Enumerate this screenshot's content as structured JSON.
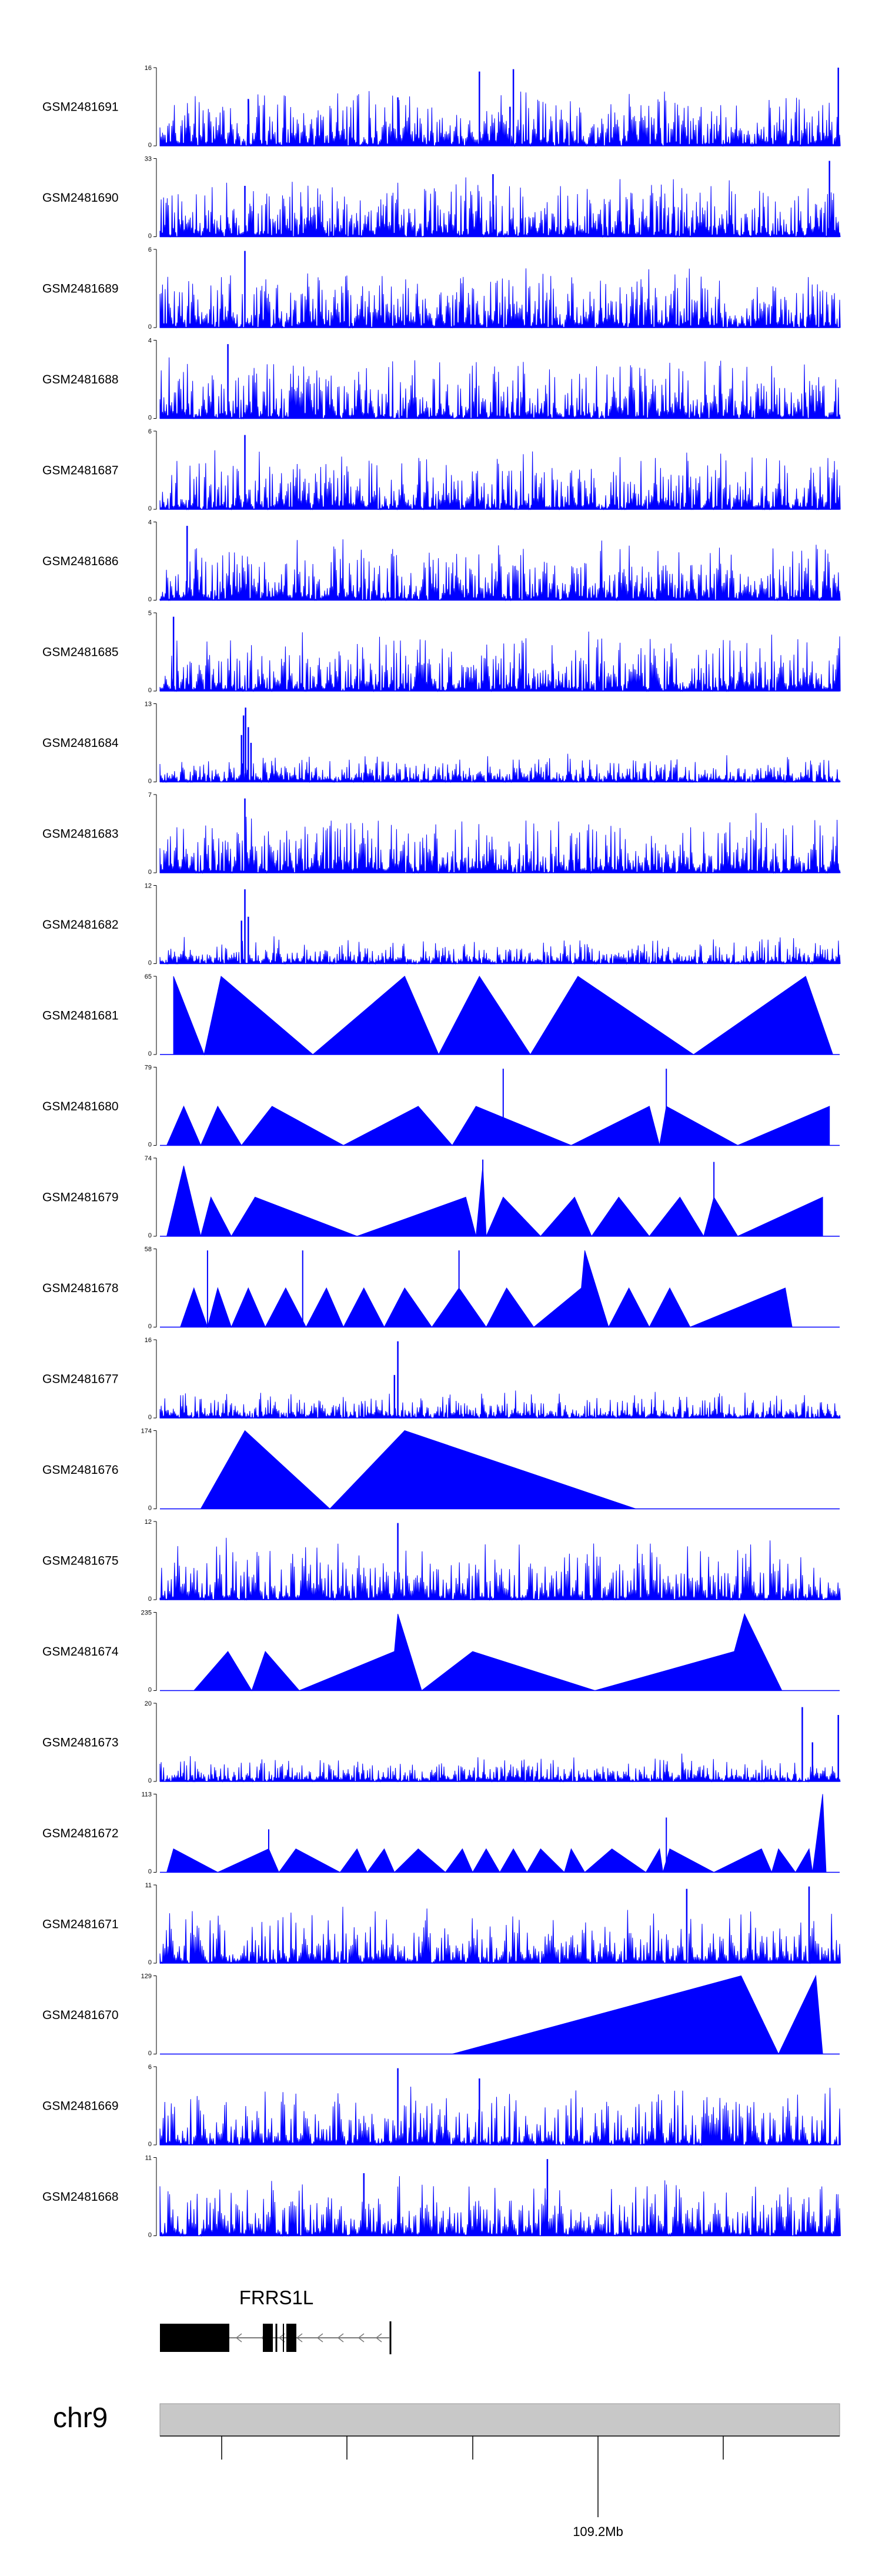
{
  "colors": {
    "signal": "#0000ff",
    "axis": "#000000",
    "ideogram": "#c8c8c8",
    "gene": "#000000",
    "intron": "#7a7a7a"
  },
  "tracks": [
    {
      "name": "GSM2481691",
      "ymax": "16",
      "ymin": "0",
      "style": "dense",
      "seed": 11,
      "peaks": [
        [
          0.13,
          0.6
        ],
        [
          0.35,
          0.62
        ],
        [
          0.47,
          0.95
        ],
        [
          0.52,
          0.98
        ],
        [
          0.515,
          0.5
        ],
        [
          0.998,
          1.0
        ]
      ]
    },
    {
      "name": "GSM2481690",
      "ymax": "33",
      "ymin": "0",
      "style": "sparse",
      "seed": 12,
      "peaks": [
        [
          0.125,
          0.65
        ],
        [
          0.49,
          0.8
        ],
        [
          0.985,
          0.97
        ]
      ]
    },
    {
      "name": "GSM2481689",
      "ymax": "6",
      "ymin": "0",
      "style": "dense",
      "seed": 13,
      "peaks": [
        [
          0.125,
          0.98
        ]
      ]
    },
    {
      "name": "GSM2481688",
      "ymax": "4",
      "ymin": "0",
      "style": "dense",
      "seed": 14,
      "peaks": [
        [
          0.1,
          0.95
        ]
      ]
    },
    {
      "name": "GSM2481687",
      "ymax": "6",
      "ymin": "0",
      "style": "dense",
      "seed": 15,
      "peaks": [
        [
          0.125,
          0.95
        ]
      ]
    },
    {
      "name": "GSM2481686",
      "ymax": "4",
      "ymin": "0",
      "style": "dense",
      "seed": 16,
      "peaks": [
        [
          0.04,
          0.95
        ]
      ]
    },
    {
      "name": "GSM2481685",
      "ymax": "5",
      "ymin": "0",
      "style": "dense",
      "seed": 17,
      "peaks": [
        [
          0.02,
          0.95
        ]
      ]
    },
    {
      "name": "GSM2481684",
      "ymax": "13",
      "ymin": "0",
      "style": "lowdense",
      "seed": 18,
      "peaks": [
        [
          0.12,
          0.6
        ],
        [
          0.123,
          0.85
        ],
        [
          0.126,
          0.95
        ],
        [
          0.13,
          0.7
        ],
        [
          0.134,
          0.5
        ]
      ]
    },
    {
      "name": "GSM2481683",
      "ymax": "7",
      "ymin": "0",
      "style": "dense",
      "seed": 19,
      "peaks": [
        [
          0.125,
          0.95
        ]
      ]
    },
    {
      "name": "GSM2481682",
      "ymax": "12",
      "ymin": "0",
      "style": "lowdense",
      "seed": 20,
      "peaks": [
        [
          0.12,
          0.55
        ],
        [
          0.125,
          0.95
        ],
        [
          0.13,
          0.6
        ]
      ]
    },
    {
      "name": "GSM2481681",
      "ymax": "65",
      "ymin": "0",
      "style": "tri",
      "seed": 21,
      "tri": [
        [
          0.02,
          1.0
        ],
        [
          0.065,
          0.0
        ],
        [
          0.09,
          1.0
        ],
        [
          0.225,
          0.0
        ],
        [
          0.36,
          1.0
        ],
        [
          0.41,
          0.0
        ],
        [
          0.47,
          1.0
        ],
        [
          0.545,
          0.0
        ],
        [
          0.615,
          1.0
        ],
        [
          0.785,
          0.0
        ],
        [
          0.95,
          1.0
        ],
        [
          0.99,
          0.0
        ]
      ],
      "spikes": [
        [
          0.36,
          1.0
        ]
      ]
    },
    {
      "name": "GSM2481680",
      "ymax": "79",
      "ymin": "0",
      "style": "tri",
      "seed": 22,
      "tri": [
        [
          0.01,
          0.0
        ],
        [
          0.035,
          0.5
        ],
        [
          0.06,
          0.0
        ],
        [
          0.085,
          0.5
        ],
        [
          0.12,
          0.0
        ],
        [
          0.165,
          0.5
        ],
        [
          0.27,
          0.0
        ],
        [
          0.38,
          0.5
        ],
        [
          0.43,
          0.0
        ],
        [
          0.465,
          0.5
        ],
        [
          0.605,
          0.0
        ],
        [
          0.72,
          0.5
        ],
        [
          0.735,
          0.0
        ],
        [
          0.745,
          0.5
        ],
        [
          0.85,
          0.0
        ],
        [
          0.985,
          0.5
        ],
        [
          0.985,
          0.0
        ]
      ],
      "spikes": [
        [
          0.505,
          0.98
        ],
        [
          0.745,
          0.98
        ]
      ]
    },
    {
      "name": "GSM2481679",
      "ymax": "74",
      "ymin": "0",
      "style": "tri",
      "seed": 23,
      "tri": [
        [
          0.01,
          0.0
        ],
        [
          0.035,
          0.9
        ],
        [
          0.06,
          0.0
        ],
        [
          0.075,
          0.5
        ],
        [
          0.105,
          0.0
        ],
        [
          0.14,
          0.5
        ],
        [
          0.29,
          0.0
        ],
        [
          0.45,
          0.5
        ],
        [
          0.465,
          0.0
        ],
        [
          0.475,
          0.9
        ],
        [
          0.48,
          0.0
        ],
        [
          0.505,
          0.5
        ],
        [
          0.56,
          0.0
        ],
        [
          0.61,
          0.5
        ],
        [
          0.635,
          0.0
        ],
        [
          0.675,
          0.5
        ],
        [
          0.72,
          0.0
        ],
        [
          0.765,
          0.5
        ],
        [
          0.8,
          0.0
        ],
        [
          0.815,
          0.5
        ],
        [
          0.85,
          0.0
        ],
        [
          0.975,
          0.5
        ],
        [
          0.975,
          0.0
        ]
      ],
      "spikes": [
        [
          0.475,
          0.98
        ],
        [
          0.815,
          0.95
        ],
        [
          0.14,
          0.5
        ]
      ]
    },
    {
      "name": "GSM2481678",
      "ymax": "58",
      "ymin": "0",
      "style": "tri",
      "seed": 24,
      "tri": [
        [
          0.03,
          0.0
        ],
        [
          0.05,
          0.5
        ],
        [
          0.07,
          0.0
        ],
        [
          0.085,
          0.5
        ],
        [
          0.105,
          0.0
        ],
        [
          0.13,
          0.5
        ],
        [
          0.155,
          0.0
        ],
        [
          0.185,
          0.5
        ],
        [
          0.215,
          0.0
        ],
        [
          0.245,
          0.5
        ],
        [
          0.27,
          0.0
        ],
        [
          0.3,
          0.5
        ],
        [
          0.33,
          0.0
        ],
        [
          0.36,
          0.5
        ],
        [
          0.4,
          0.0
        ],
        [
          0.44,
          0.5
        ],
        [
          0.48,
          0.0
        ],
        [
          0.51,
          0.5
        ],
        [
          0.55,
          0.0
        ],
        [
          0.62,
          0.5
        ],
        [
          0.625,
          0.98
        ],
        [
          0.66,
          0.0
        ],
        [
          0.69,
          0.5
        ],
        [
          0.72,
          0.0
        ],
        [
          0.75,
          0.5
        ],
        [
          0.78,
          0.0
        ],
        [
          0.92,
          0.5
        ],
        [
          0.93,
          0.0
        ]
      ],
      "spikes": [
        [
          0.07,
          0.98
        ],
        [
          0.21,
          0.98
        ],
        [
          0.44,
          0.98
        ]
      ]
    },
    {
      "name": "GSM2481677",
      "ymax": "16",
      "ymin": "0",
      "style": "lowdense",
      "seed": 25,
      "peaks": [
        [
          0.35,
          0.98
        ],
        [
          0.345,
          0.55
        ]
      ]
    },
    {
      "name": "GSM2481676",
      "ymax": "174",
      "ymin": "0",
      "style": "tri",
      "seed": 26,
      "tri": [
        [
          0.06,
          0.0
        ],
        [
          0.125,
          1.0
        ],
        [
          0.25,
          0.0
        ],
        [
          0.36,
          1.0
        ],
        [
          0.7,
          0.0
        ]
      ],
      "spikes": []
    },
    {
      "name": "GSM2481675",
      "ymax": "12",
      "ymin": "0",
      "style": "mid",
      "seed": 27,
      "peaks": [
        [
          0.35,
          0.98
        ]
      ]
    },
    {
      "name": "GSM2481674",
      "ymax": "235",
      "ymin": "0",
      "style": "tri",
      "seed": 28,
      "tri": [
        [
          0.05,
          0.0
        ],
        [
          0.1,
          0.5
        ],
        [
          0.135,
          0.0
        ],
        [
          0.155,
          0.5
        ],
        [
          0.205,
          0.0
        ],
        [
          0.345,
          0.5
        ],
        [
          0.35,
          0.98
        ],
        [
          0.385,
          0.0
        ],
        [
          0.46,
          0.5
        ],
        [
          0.64,
          0.0
        ],
        [
          0.845,
          0.5
        ],
        [
          0.86,
          0.98
        ],
        [
          0.915,
          0.0
        ]
      ],
      "spikes": []
    },
    {
      "name": "GSM2481673",
      "ymax": "20",
      "ymin": "0",
      "style": "lowdense",
      "seed": 29,
      "peaks": [
        [
          0.945,
          0.95
        ],
        [
          0.96,
          0.5
        ],
        [
          0.998,
          0.85
        ]
      ]
    },
    {
      "name": "GSM2481672",
      "ymax": "113",
      "ymin": "0",
      "style": "tri",
      "seed": 30,
      "tri": [
        [
          0.01,
          0.0
        ],
        [
          0.02,
          0.3
        ],
        [
          0.085,
          0.0
        ],
        [
          0.16,
          0.3
        ],
        [
          0.175,
          0.0
        ],
        [
          0.2,
          0.3
        ],
        [
          0.265,
          0.0
        ],
        [
          0.29,
          0.3
        ],
        [
          0.305,
          0.0
        ],
        [
          0.33,
          0.3
        ],
        [
          0.345,
          0.0
        ],
        [
          0.38,
          0.3
        ],
        [
          0.42,
          0.0
        ],
        [
          0.445,
          0.3
        ],
        [
          0.46,
          0.0
        ],
        [
          0.48,
          0.3
        ],
        [
          0.5,
          0.0
        ],
        [
          0.52,
          0.3
        ],
        [
          0.54,
          0.0
        ],
        [
          0.56,
          0.3
        ],
        [
          0.595,
          0.0
        ],
        [
          0.605,
          0.3
        ],
        [
          0.625,
          0.0
        ],
        [
          0.665,
          0.3
        ],
        [
          0.715,
          0.0
        ],
        [
          0.735,
          0.3
        ],
        [
          0.74,
          0.0
        ],
        [
          0.75,
          0.3
        ],
        [
          0.815,
          0.0
        ],
        [
          0.885,
          0.3
        ],
        [
          0.9,
          0.0
        ],
        [
          0.91,
          0.3
        ],
        [
          0.935,
          0.0
        ],
        [
          0.955,
          0.3
        ],
        [
          0.96,
          0.0
        ],
        [
          0.975,
          1.0
        ],
        [
          0.98,
          0.0
        ]
      ],
      "spikes": [
        [
          0.16,
          0.55
        ],
        [
          0.745,
          0.7
        ]
      ]
    },
    {
      "name": "GSM2481671",
      "ymax": "11",
      "ymin": "0",
      "style": "mid",
      "seed": 31,
      "peaks": [
        [
          0.775,
          0.95
        ],
        [
          0.955,
          0.98
        ]
      ]
    },
    {
      "name": "GSM2481670",
      "ymax": "129",
      "ymin": "0",
      "style": "tri",
      "seed": 32,
      "tri": [
        [
          0.43,
          0.0
        ],
        [
          0.855,
          1.0
        ],
        [
          0.91,
          0.0
        ],
        [
          0.965,
          1.0
        ],
        [
          0.975,
          0.0
        ]
      ],
      "spikes": []
    },
    {
      "name": "GSM2481669",
      "ymax": "6",
      "ymin": "0",
      "style": "mid",
      "seed": 33,
      "peaks": [
        [
          0.35,
          0.98
        ],
        [
          0.47,
          0.85
        ]
      ]
    },
    {
      "name": "GSM2481668",
      "ymax": "11",
      "ymin": "0",
      "style": "mid",
      "seed": 34,
      "peaks": [
        [
          0.3,
          0.8
        ],
        [
          0.57,
          0.98
        ]
      ]
    }
  ],
  "gene": {
    "name": "FRRS1L"
  },
  "chromosome": {
    "name": "chr9",
    "tick_label": "109.2Mb"
  }
}
